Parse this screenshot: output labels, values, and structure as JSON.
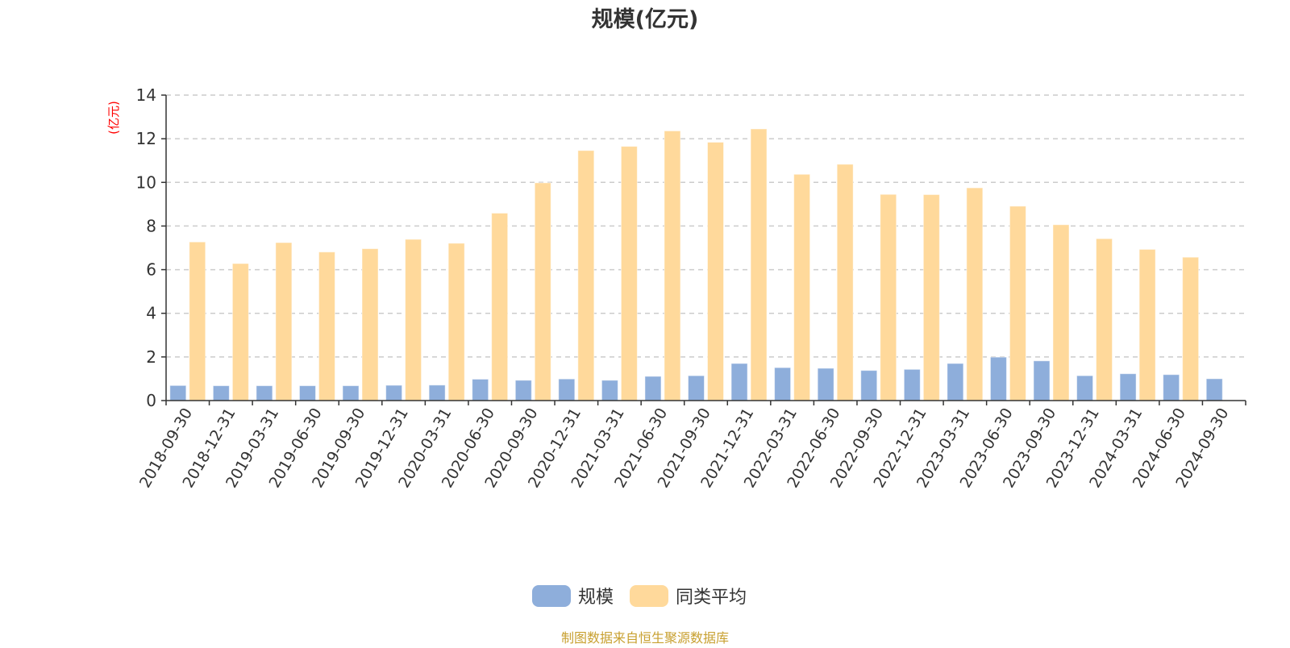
{
  "chart_data": {
    "type": "bar",
    "title": "规模(亿元)",
    "ylabel": "(亿元)",
    "xlabel": "",
    "ylim": [
      0,
      14
    ],
    "yticks": [
      0,
      2,
      4,
      6,
      8,
      10,
      12,
      14
    ],
    "grid": true,
    "legend_position": "bottom",
    "categories": [
      "2018-09-30",
      "2018-12-31",
      "2019-03-31",
      "2019-06-30",
      "2019-09-30",
      "2019-12-31",
      "2020-03-31",
      "2020-06-30",
      "2020-09-30",
      "2020-12-31",
      "2021-03-31",
      "2021-06-30",
      "2021-09-30",
      "2021-12-31",
      "2022-03-31",
      "2022-06-30",
      "2022-09-30",
      "2022-12-31",
      "2023-03-31",
      "2023-06-30",
      "2023-09-30",
      "2023-12-31",
      "2024-03-31",
      "2024-06-30",
      "2024-09-30"
    ],
    "series": [
      {
        "name": "规模",
        "color": "#8eaedb",
        "values": [
          0.69,
          0.68,
          0.68,
          0.68,
          0.68,
          0.7,
          0.71,
          0.98,
          0.93,
          0.99,
          0.93,
          1.11,
          1.14,
          1.7,
          1.51,
          1.48,
          1.38,
          1.43,
          1.7,
          1.99,
          1.82,
          1.14,
          1.23,
          1.19,
          1.0
        ]
      },
      {
        "name": "同类平均",
        "color": "#ffd99b",
        "values": [
          7.27,
          6.28,
          7.24,
          6.81,
          6.96,
          7.39,
          7.21,
          8.59,
          9.98,
          11.46,
          11.65,
          12.36,
          11.84,
          12.45,
          10.37,
          10.83,
          9.45,
          9.44,
          9.75,
          8.91,
          8.06,
          7.42,
          6.93,
          6.57,
          null
        ]
      }
    ]
  },
  "source_note": "制图数据来自恒生聚源数据库",
  "colors": {
    "title": "#333333",
    "ylabel": "#ff0000",
    "source_note": "#c8a030",
    "grid": "#cccccc"
  }
}
